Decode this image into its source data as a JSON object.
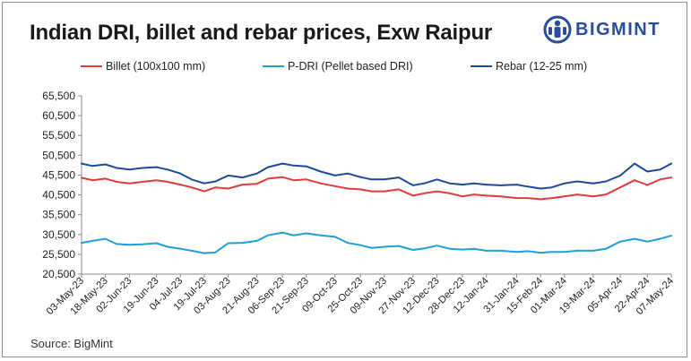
{
  "header": {
    "title": "Indian DRI, billet and rebar prices, Exw Raipur",
    "logo_text": "BIGMINT"
  },
  "source": "Source: BigMint",
  "colors": {
    "billet": "#e03c3c",
    "pdri": "#1fa0d6",
    "rebar": "#1e4a96",
    "logo": "#2a4d9b"
  },
  "chart_data": {
    "type": "line",
    "title": "Indian DRI, billet and rebar prices, Exw Raipur",
    "xlabel": "",
    "ylabel": "",
    "ylim": [
      20500,
      65500
    ],
    "yticks": [
      "65,500",
      "60,500",
      "55,500",
      "50,500",
      "45,500",
      "40,500",
      "35,500",
      "30,500",
      "25,500",
      "20,500"
    ],
    "xticks": [
      "03-May-23",
      "18-May-23",
      "02-Jun-23",
      "19-Jun-23",
      "04-Jul-23",
      "19-Jul-23",
      "03-Aug-23",
      "21-Aug-23",
      "06-Sep-23",
      "21-Sep-23",
      "09-Oct-23",
      "25-Oct-23",
      "09-Nov-23",
      "27-Nov-23",
      "12-Dec-23",
      "28-Dec-23",
      "12-Jan-24",
      "31-Jan-24",
      "15-Feb-24",
      "01-Mar-24",
      "19-Mar-24",
      "05-Apr-24",
      "22-Apr-24",
      "07-May-24"
    ],
    "x": [
      "03-May-23",
      "10-May-23",
      "18-May-23",
      "25-May-23",
      "02-Jun-23",
      "10-Jun-23",
      "19-Jun-23",
      "26-Jun-23",
      "04-Jul-23",
      "11-Jul-23",
      "19-Jul-23",
      "26-Jul-23",
      "03-Aug-23",
      "12-Aug-23",
      "21-Aug-23",
      "28-Aug-23",
      "06-Sep-23",
      "13-Sep-23",
      "21-Sep-23",
      "30-Sep-23",
      "09-Oct-23",
      "17-Oct-23",
      "25-Oct-23",
      "01-Nov-23",
      "09-Nov-23",
      "18-Nov-23",
      "27-Nov-23",
      "04-Dec-23",
      "12-Dec-23",
      "20-Dec-23",
      "28-Dec-23",
      "04-Jan-24",
      "12-Jan-24",
      "21-Jan-24",
      "31-Jan-24",
      "07-Feb-24",
      "15-Feb-24",
      "22-Feb-24",
      "01-Mar-24",
      "09-Mar-24",
      "19-Mar-24",
      "27-Mar-24",
      "05-Apr-24",
      "14-Apr-24",
      "22-Apr-24",
      "30-Apr-24",
      "07-May-24"
    ],
    "grid": false,
    "legend_position": "top",
    "series": [
      {
        "name": "Billet (100x100 mm)",
        "color": "#e03c3c",
        "values": [
          44800,
          44200,
          44600,
          43800,
          43400,
          43800,
          44200,
          43800,
          43100,
          42400,
          41400,
          42400,
          42100,
          43100,
          43300,
          44600,
          45000,
          44200,
          44400,
          43400,
          42700,
          42100,
          41900,
          41400,
          41400,
          41900,
          40300,
          40900,
          41400,
          40900,
          40100,
          40600,
          40300,
          40100,
          39700,
          39700,
          39400,
          39700,
          40100,
          40600,
          40100,
          40600,
          42400,
          44200,
          43000,
          44400,
          44900
        ]
      },
      {
        "name": "P-DRI (Pellet based DRI)",
        "color": "#1fa0d6",
        "values": [
          28400,
          28900,
          29400,
          28100,
          27900,
          28000,
          28300,
          27400,
          26900,
          26400,
          25800,
          26000,
          28300,
          28400,
          28900,
          30300,
          31000,
          30300,
          30800,
          30300,
          29900,
          28400,
          27800,
          27100,
          27400,
          27600,
          26600,
          27000,
          27700,
          26900,
          26700,
          26900,
          26400,
          26400,
          26100,
          26300,
          25900,
          26100,
          26100,
          26400,
          26400,
          26900,
          28700,
          29400,
          28700,
          29400,
          30200
        ]
      },
      {
        "name": "Rebar (12-25 mm)",
        "color": "#1e4a96",
        "values": [
          48400,
          47800,
          48200,
          47300,
          46900,
          47300,
          47500,
          46900,
          45900,
          44400,
          43400,
          43900,
          45400,
          44900,
          45900,
          47500,
          48400,
          47900,
          47700,
          46400,
          45400,
          45900,
          45000,
          44400,
          44400,
          44900,
          42900,
          43400,
          44400,
          43400,
          43100,
          43400,
          43100,
          42900,
          43100,
          42600,
          42100,
          42400,
          43400,
          43900,
          43400,
          43900,
          45400,
          48400,
          46400,
          46900,
          48400
        ]
      }
    ]
  }
}
